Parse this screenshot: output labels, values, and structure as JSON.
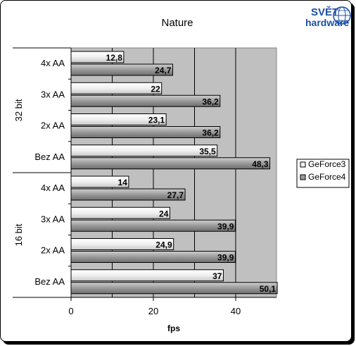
{
  "logo": {
    "line1": "SVĚT",
    "line2": "hardware",
    "color": "#1a4fa8"
  },
  "chart_data": {
    "type": "bar",
    "orientation": "horizontal",
    "title": "Nature",
    "xlabel": "fps",
    "ylabel": "",
    "xlim": [
      0,
      50
    ],
    "xticks": [
      0,
      20,
      40
    ],
    "grid": true,
    "legend_position": "right",
    "groups": [
      {
        "name": "32 bit",
        "categories": [
          "4x AA",
          "3x AA",
          "2x AA",
          "Bez AA"
        ],
        "series": [
          {
            "name": "GeForce3",
            "values": [
              12.8,
              22,
              23.1,
              35.5
            ]
          },
          {
            "name": "GeForce4",
            "values": [
              24.7,
              36.2,
              36.2,
              48.3
            ]
          }
        ]
      },
      {
        "name": "16 bit",
        "categories": [
          "4x AA",
          "3x AA",
          "2x AA",
          "Bez AA"
        ],
        "series": [
          {
            "name": "GeForce3",
            "values": [
              14,
              24,
              24.9,
              37
            ]
          },
          {
            "name": "GeForce4",
            "values": [
              27.7,
              39.9,
              39.9,
              50.1
            ]
          }
        ]
      }
    ],
    "series_colors": {
      "GeForce3": "#f0f0f0",
      "GeForce4": "#9a9a9a"
    },
    "plot_background": "#c0c0c0"
  }
}
